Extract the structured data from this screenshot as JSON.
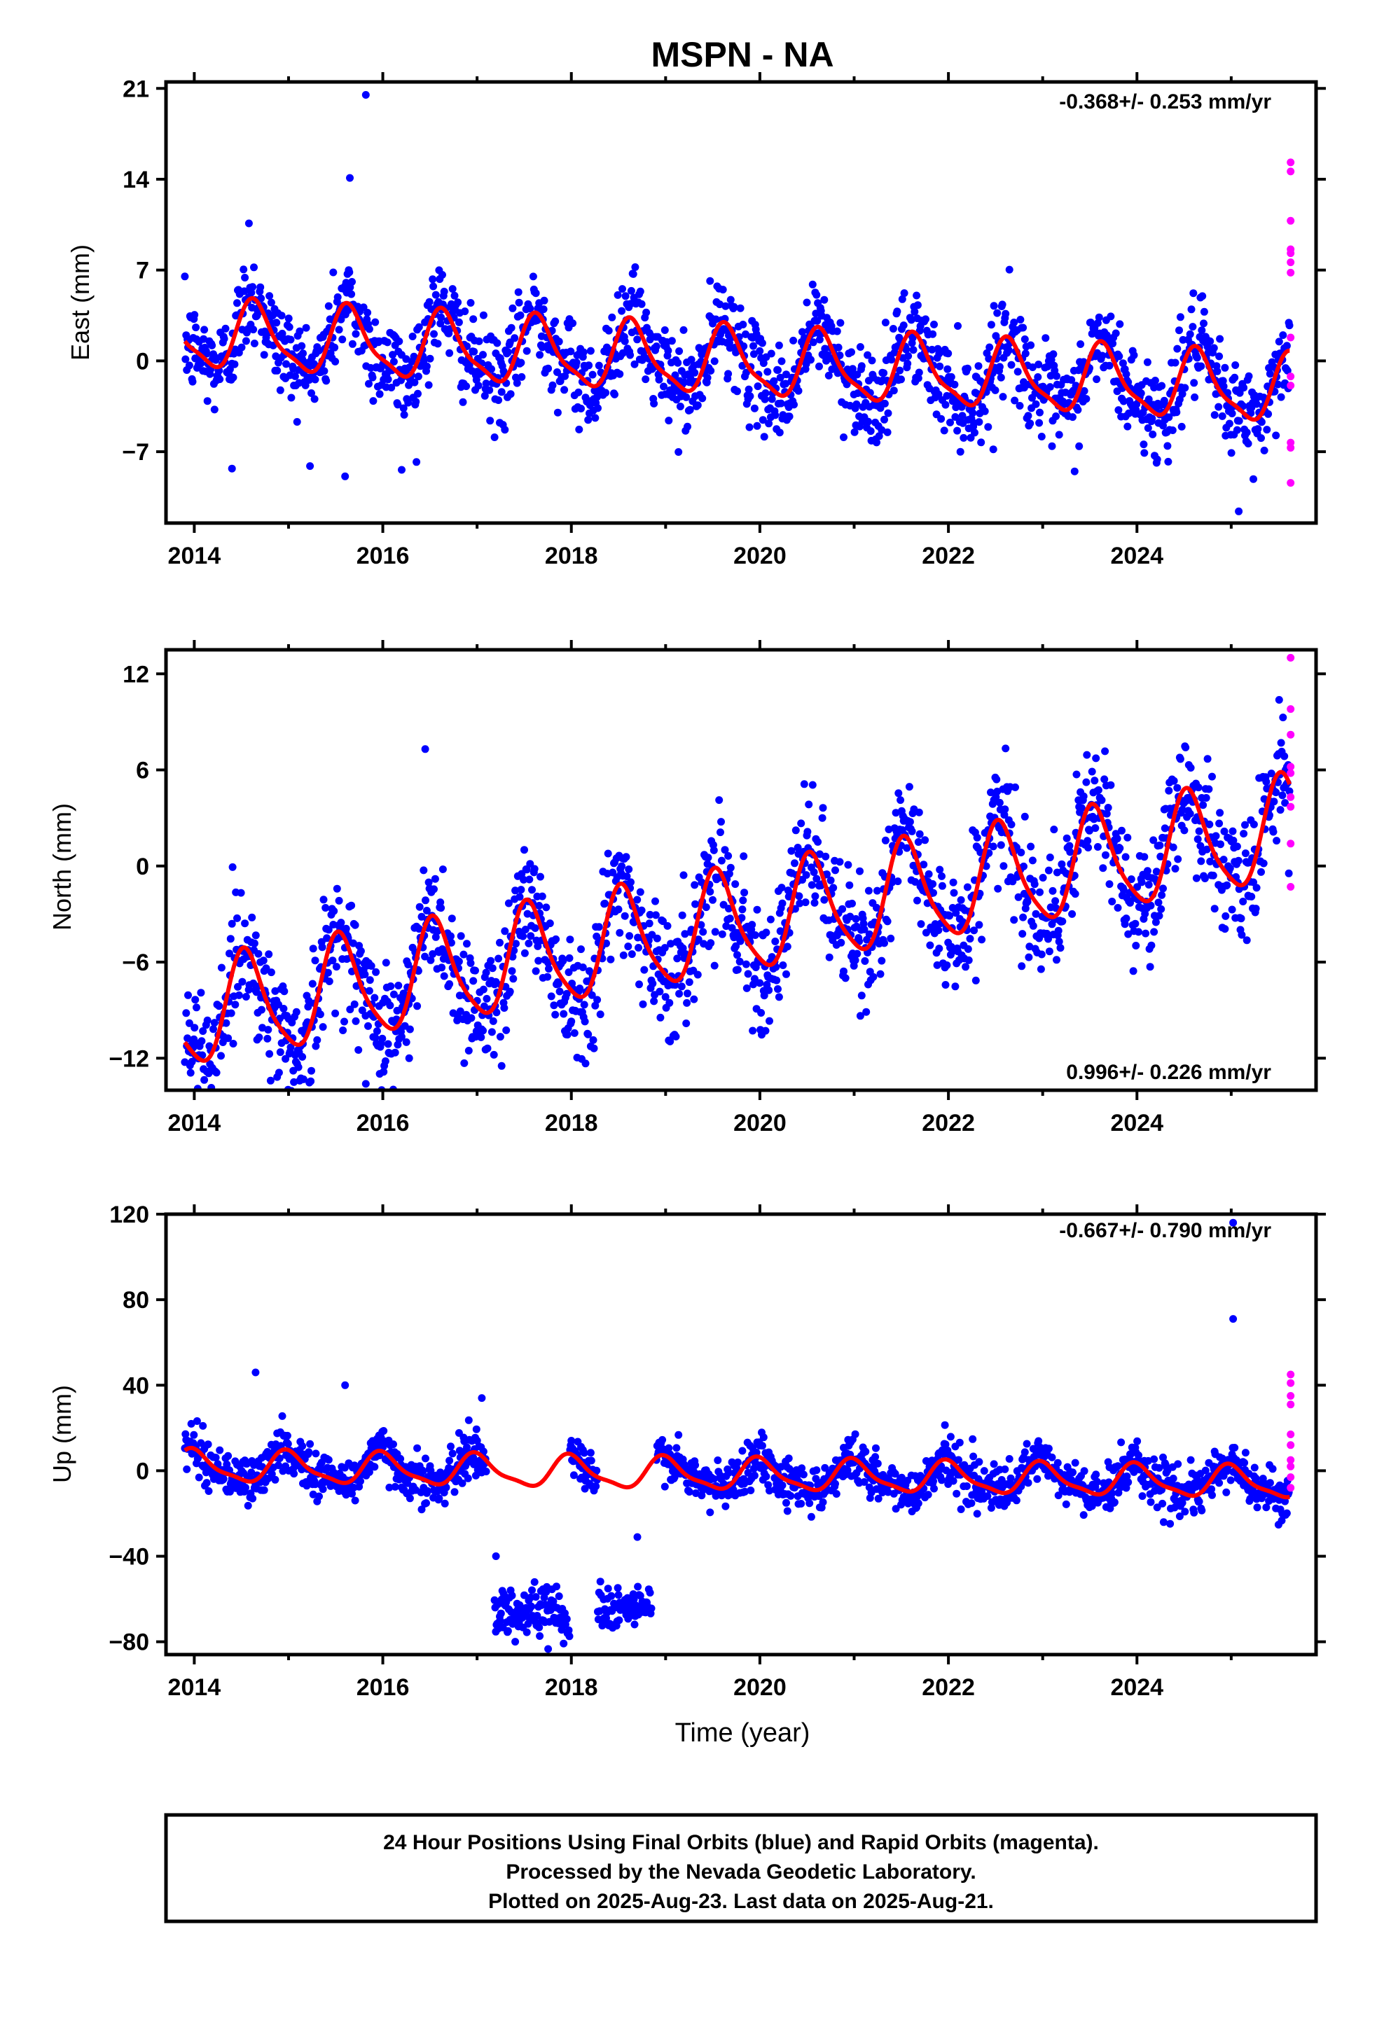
{
  "title": "MSPN - NA",
  "colors": {
    "final": "#0000ff",
    "rapid": "#ff00ff",
    "model": "#ff0000",
    "frame": "#000000"
  },
  "xaxis": {
    "label": "Time (year)",
    "range": [
      2013.7,
      2025.9
    ],
    "ticks": [
      2014,
      2016,
      2018,
      2020,
      2022,
      2024
    ],
    "tick_labels": [
      "2014",
      "2016",
      "2018",
      "2020",
      "2022",
      "2024"
    ]
  },
  "footer": {
    "line1": "24 Hour Positions Using Final Orbits (blue) and Rapid Orbits (magenta).",
    "line2": "Processed by the Nevada Geodetic Laboratory.",
    "line3": "Plotted on 2025-Aug-23. Last data on 2025-Aug-21."
  },
  "chart_data": [
    {
      "type": "scatter",
      "component": "east",
      "ylabel": "East (mm)",
      "ylim": [
        -12.5,
        21.5
      ],
      "yticks": [
        21,
        14,
        7,
        0,
        -7
      ],
      "ytick_labels": [
        "21",
        "14",
        "7",
        "0",
        "−7"
      ],
      "rate_text": "-0.368+/- 0.253 mm/yr",
      "rate_position": "top-right",
      "data_start": 2013.9,
      "data_end": 2025.62,
      "trend_mm_per_yr": -0.368,
      "offset_mm": 2.0,
      "annual_amplitude_mm": 2.5,
      "semiannual_amplitude_mm": 0.7,
      "annual_peak_phase": 0.65,
      "scatter_sd_mm": 1.8,
      "gaps": [],
      "outliers": [
        [
          2015.82,
          20.5
        ],
        [
          2015.65,
          14.1
        ],
        [
          2014.58,
          10.6
        ],
        [
          2014.4,
          -8.3
        ],
        [
          2015.6,
          -8.9
        ],
        [
          2025.08,
          -11.6
        ],
        [
          2016.2,
          -8.4
        ]
      ],
      "rapid_orbits": [
        [
          2025.63,
          15.3
        ],
        [
          2025.63,
          14.6
        ],
        [
          2025.63,
          10.8
        ],
        [
          2025.63,
          8.6
        ],
        [
          2025.63,
          8.3
        ],
        [
          2025.63,
          7.6
        ],
        [
          2025.63,
          6.8
        ],
        [
          2025.63,
          1.8
        ],
        [
          2025.63,
          -1.2
        ],
        [
          2025.63,
          -1.9
        ],
        [
          2025.63,
          -6.3
        ],
        [
          2025.63,
          -6.7
        ],
        [
          2025.63,
          -9.4
        ]
      ]
    },
    {
      "type": "scatter",
      "component": "north",
      "ylabel": "North (mm)",
      "ylim": [
        -14,
        13.5
      ],
      "yticks": [
        12,
        6,
        0,
        -6,
        -12
      ],
      "ytick_labels": [
        "12",
        "6",
        "0",
        "−6",
        "−12"
      ],
      "rate_text": "0.996+/- 0.226 mm/yr",
      "rate_position": "bottom-right",
      "data_start": 2013.9,
      "data_end": 2025.62,
      "trend_mm_per_yr": 0.996,
      "offset_mm": -9.4,
      "annual_amplitude_mm": 3.2,
      "semiannual_amplitude_mm": 0.6,
      "annual_peak_phase": 0.55,
      "scatter_sd_mm": 1.9,
      "gaps": [],
      "outliers": [
        [
          2015.82,
          -13.6
        ],
        [
          2016.28,
          -12.0
        ],
        [
          2016.25,
          -11.0
        ],
        [
          2016.45,
          7.3
        ],
        [
          2019.75,
          -6.5
        ],
        [
          2024.9,
          -1.5
        ]
      ],
      "rapid_orbits": [
        [
          2025.63,
          13.0
        ],
        [
          2025.63,
          9.8
        ],
        [
          2025.63,
          8.2
        ],
        [
          2025.63,
          6.2
        ],
        [
          2025.63,
          5.8
        ],
        [
          2025.63,
          4.3
        ],
        [
          2025.63,
          3.7
        ],
        [
          2025.63,
          1.4
        ],
        [
          2025.63,
          -1.3
        ]
      ]
    },
    {
      "type": "scatter",
      "component": "up",
      "ylabel": "Up (mm)",
      "ylim": [
        -86,
        120
      ],
      "yticks": [
        120,
        80,
        40,
        0,
        -40,
        -80
      ],
      "ytick_labels": [
        "120",
        "80",
        "40",
        "0",
        "−40",
        "−80"
      ],
      "rate_text": "-0.667+/- 0.790 mm/yr",
      "rate_position": "top-right",
      "data_start": 2013.9,
      "data_end": 2025.62,
      "trend_mm_per_yr": -0.667,
      "offset_mm": 2.0,
      "annual_amplitude_mm": 7.0,
      "semiannual_amplitude_mm": 2.0,
      "annual_peak_phase": 0.0,
      "scatter_sd_mm": 5.5,
      "gaps": [
        [
          2017.1,
          2017.95
        ],
        [
          2018.85,
          2018.9
        ]
      ],
      "offset_segments": [
        {
          "start": 2017.18,
          "end": 2017.98,
          "level_mm": -66,
          "sd_mm": 6
        },
        {
          "start": 2018.28,
          "end": 2018.85,
          "level_mm": -64,
          "sd_mm": 5
        }
      ],
      "outliers": [
        [
          2025.02,
          116.0
        ],
        [
          2025.02,
          71.0
        ],
        [
          2017.2,
          -40.0
        ],
        [
          2018.7,
          -31.0
        ],
        [
          2014.65,
          46.0
        ],
        [
          2017.05,
          34.0
        ],
        [
          2015.6,
          40.0
        ]
      ],
      "rapid_orbits": [
        [
          2025.63,
          45.0
        ],
        [
          2025.63,
          41.0
        ],
        [
          2025.63,
          35.0
        ],
        [
          2025.63,
          31.0
        ],
        [
          2025.63,
          17.0
        ],
        [
          2025.63,
          12.0
        ],
        [
          2025.63,
          5.0
        ],
        [
          2025.63,
          2.0
        ],
        [
          2025.63,
          -3.0
        ],
        [
          2025.63,
          -8.0
        ]
      ]
    }
  ]
}
